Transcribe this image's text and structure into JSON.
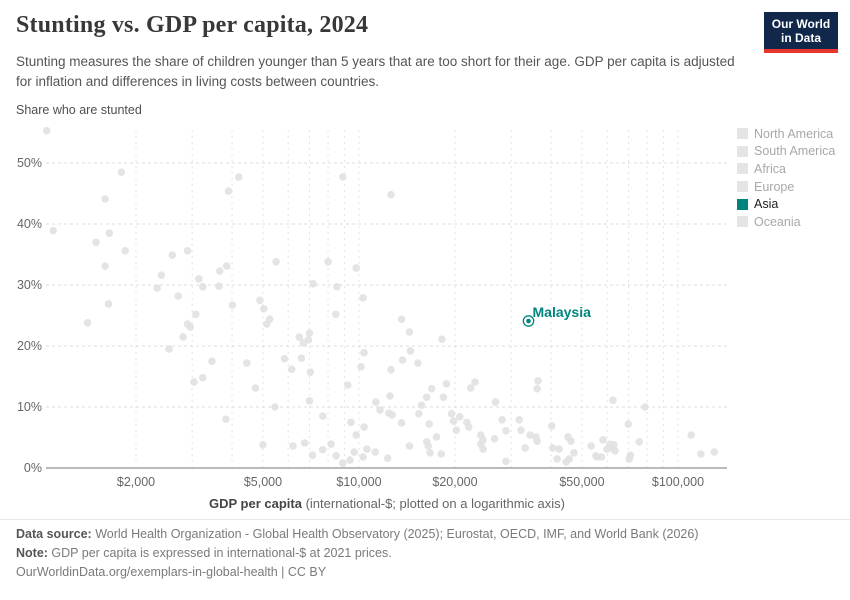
{
  "header": {
    "title": "Stunting vs. GDP per capita, 2024",
    "subtitle": "Stunting measures the share of children younger than 5 years that are too short for their age. GDP per capita is adjusted for inflation and differences in living costs between countries.",
    "logo": {
      "line1": "Our World",
      "line2": "in Data",
      "bg": "#12284B",
      "accent": "#E5362F"
    }
  },
  "chart": {
    "y_axis_label": "Share who are stunted",
    "x_title_bold": "GDP per capita",
    "x_title_rest": " (international-$; plotted on a logarithmic axis)"
  },
  "legend": {
    "items": [
      {
        "label": "North America",
        "active": false
      },
      {
        "label": "South America",
        "active": false
      },
      {
        "label": "Africa",
        "active": false
      },
      {
        "label": "Europe",
        "active": false
      },
      {
        "label": "Asia",
        "active": true
      },
      {
        "label": "Oceania",
        "active": false
      }
    ],
    "active_color": "#00847E",
    "inactive_swatch": "#e4e4e4"
  },
  "footer": {
    "datasource_label": "Data source:",
    "datasource_text": " World Health Organization - Global Health Observatory (2025); Eurostat, OECD, IMF, and World Bank (2026)",
    "note_label": "Note:",
    "note_text": " GDP per capita is expressed in international-$ at 2021 prices.",
    "citation": "OurWorldinData.org/exemplars-in-global-health | CC BY"
  },
  "chart_data": {
    "type": "scatter",
    "title": "Stunting vs. GDP per capita, 2024",
    "xlabel": "GDP per capita (international-$; plotted on a logarithmic axis)",
    "ylabel": "Share who are stunted",
    "x_scale": "log",
    "xlim": [
      1050,
      135000
    ],
    "ylim": [
      0,
      56
    ],
    "grid": true,
    "legend_position": "right",
    "x_ticks": [
      {
        "v": 2000,
        "label": "$2,000"
      },
      {
        "v": 5000,
        "label": "$5,000"
      },
      {
        "v": 10000,
        "label": "$10,000"
      },
      {
        "v": 20000,
        "label": "$20,000"
      },
      {
        "v": 50000,
        "label": "$50,000"
      },
      {
        "v": 100000,
        "label": "$100,000"
      }
    ],
    "y_ticks": [
      {
        "v": 0,
        "label": "0%"
      },
      {
        "v": 10,
        "label": "10%"
      },
      {
        "v": 20,
        "label": "20%"
      },
      {
        "v": 30,
        "label": "30%"
      },
      {
        "v": 40,
        "label": "40%"
      },
      {
        "v": 50,
        "label": "50%"
      }
    ],
    "x_minor_gridlines": [
      2000,
      3000,
      4000,
      5000,
      6000,
      7000,
      8000,
      9000,
      10000,
      20000,
      30000,
      40000,
      50000,
      60000,
      70000,
      80000,
      90000,
      100000
    ],
    "point_color": "#e1e1e1",
    "highlight": {
      "name": "Malaysia",
      "gdp": 34000,
      "stunting_pct": 24.1,
      "color": "#00847E"
    },
    "background_points": [
      [
        1050,
        55.3
      ],
      [
        1800,
        48.5
      ],
      [
        1600,
        44.1
      ],
      [
        4200,
        47.7
      ],
      [
        3900,
        45.4
      ],
      [
        8900,
        47.7
      ],
      [
        12600,
        44.8
      ],
      [
        1100,
        38.9
      ],
      [
        1650,
        38.5
      ],
      [
        1500,
        37.0
      ],
      [
        1850,
        35.6
      ],
      [
        1600,
        33.1
      ],
      [
        2600,
        34.9
      ],
      [
        2900,
        35.6
      ],
      [
        2400,
        31.6
      ],
      [
        2330,
        29.5
      ],
      [
        3150,
        31.0
      ],
      [
        3240,
        29.7
      ],
      [
        3660,
        32.3
      ],
      [
        3850,
        33.1
      ],
      [
        3640,
        29.8
      ],
      [
        2710,
        28.2
      ],
      [
        5500,
        33.8
      ],
      [
        7180,
        30.2
      ],
      [
        8000,
        33.8
      ],
      [
        8530,
        29.7
      ],
      [
        9800,
        32.8
      ],
      [
        10300,
        27.9
      ],
      [
        4890,
        27.5
      ],
      [
        1640,
        26.9
      ],
      [
        1410,
        23.8
      ],
      [
        3080,
        25.2
      ],
      [
        2900,
        23.6
      ],
      [
        2960,
        23.1
      ],
      [
        2810,
        21.5
      ],
      [
        2540,
        19.5
      ],
      [
        3460,
        17.5
      ],
      [
        3040,
        14.1
      ],
      [
        3240,
        14.8
      ],
      [
        4010,
        26.7
      ],
      [
        4450,
        17.2
      ],
      [
        3830,
        8.0
      ],
      [
        5030,
        26.1
      ],
      [
        5140,
        23.6
      ],
      [
        5250,
        24.4
      ],
      [
        4740,
        13.1
      ],
      [
        6500,
        21.5
      ],
      [
        6700,
        20.5
      ],
      [
        6940,
        21.0
      ],
      [
        6990,
        22.1
      ],
      [
        5840,
        17.9
      ],
      [
        6600,
        18.0
      ],
      [
        6160,
        16.2
      ],
      [
        7040,
        15.7
      ],
      [
        5450,
        10.0
      ],
      [
        6990,
        11.0
      ],
      [
        7700,
        8.5
      ],
      [
        8460,
        25.2
      ],
      [
        9230,
        13.6
      ],
      [
        10380,
        18.9
      ],
      [
        10150,
        16.6
      ],
      [
        9440,
        7.5
      ],
      [
        9800,
        5.4
      ],
      [
        10380,
        6.7
      ],
      [
        11300,
        10.8
      ],
      [
        11640,
        9.5
      ],
      [
        12600,
        16.1
      ],
      [
        12500,
        11.8
      ],
      [
        12400,
        9.0
      ],
      [
        12700,
        8.7
      ],
      [
        13600,
        24.4
      ],
      [
        13700,
        17.7
      ],
      [
        13600,
        7.4
      ],
      [
        14400,
        22.3
      ],
      [
        18200,
        21.1
      ],
      [
        14500,
        19.2
      ],
      [
        15300,
        17.2
      ],
      [
        15700,
        10.3
      ],
      [
        16300,
        11.6
      ],
      [
        16900,
        13.0
      ],
      [
        18800,
        13.8
      ],
      [
        18400,
        11.6
      ],
      [
        15400,
        8.9
      ],
      [
        16600,
        7.2
      ],
      [
        16300,
        4.3
      ],
      [
        16500,
        3.6
      ],
      [
        17500,
        5.1
      ],
      [
        19500,
        8.9
      ],
      [
        19800,
        7.7
      ],
      [
        20200,
        6.2
      ],
      [
        20700,
        8.4
      ],
      [
        21800,
        7.5
      ],
      [
        22100,
        6.7
      ],
      [
        23100,
        14.1
      ],
      [
        22400,
        13.1
      ],
      [
        24100,
        5.4
      ],
      [
        24500,
        4.6
      ],
      [
        24100,
        3.9
      ],
      [
        24500,
        3.1
      ],
      [
        26800,
        10.8
      ],
      [
        26600,
        4.8
      ],
      [
        28100,
        7.9
      ],
      [
        28900,
        6.1
      ],
      [
        28900,
        1.1
      ],
      [
        31800,
        7.9
      ],
      [
        32200,
        6.2
      ],
      [
        33200,
        3.3
      ],
      [
        34400,
        5.4
      ],
      [
        35900,
        5.1
      ],
      [
        36200,
        4.4
      ],
      [
        36400,
        14.3
      ],
      [
        36200,
        13.0
      ],
      [
        40200,
        6.9
      ],
      [
        40500,
        3.3
      ],
      [
        41800,
        1.5
      ],
      [
        44600,
        1.0
      ],
      [
        45600,
        1.5
      ],
      [
        45200,
        5.1
      ],
      [
        46200,
        4.4
      ],
      [
        47200,
        2.5
      ],
      [
        42400,
        3.1
      ],
      [
        53400,
        3.6
      ],
      [
        55300,
        2.0
      ],
      [
        55800,
        1.8
      ],
      [
        57600,
        1.8
      ],
      [
        58200,
        4.6
      ],
      [
        59900,
        3.1
      ],
      [
        61200,
        3.9
      ],
      [
        62100,
        3.3
      ],
      [
        63000,
        3.8
      ],
      [
        63500,
        2.8
      ],
      [
        62500,
        11.1
      ],
      [
        69800,
        7.2
      ],
      [
        70300,
        1.5
      ],
      [
        71000,
        2.1
      ],
      [
        75600,
        4.3
      ],
      [
        78900,
        10.0
      ],
      [
        110000,
        5.4
      ],
      [
        118000,
        2.3
      ],
      [
        130000,
        2.6
      ],
      [
        5000,
        3.8
      ],
      [
        6210,
        3.6
      ],
      [
        6760,
        4.1
      ],
      [
        7150,
        2.1
      ],
      [
        7690,
        3.0
      ],
      [
        8180,
        3.9
      ],
      [
        8480,
        2.0
      ],
      [
        8900,
        0.8
      ],
      [
        9370,
        1.3
      ],
      [
        9660,
        2.6
      ],
      [
        10300,
        1.8
      ],
      [
        10600,
        3.1
      ],
      [
        11240,
        2.6
      ],
      [
        12300,
        1.6
      ],
      [
        14400,
        3.6
      ],
      [
        16700,
        2.5
      ],
      [
        18100,
        2.3
      ]
    ]
  }
}
